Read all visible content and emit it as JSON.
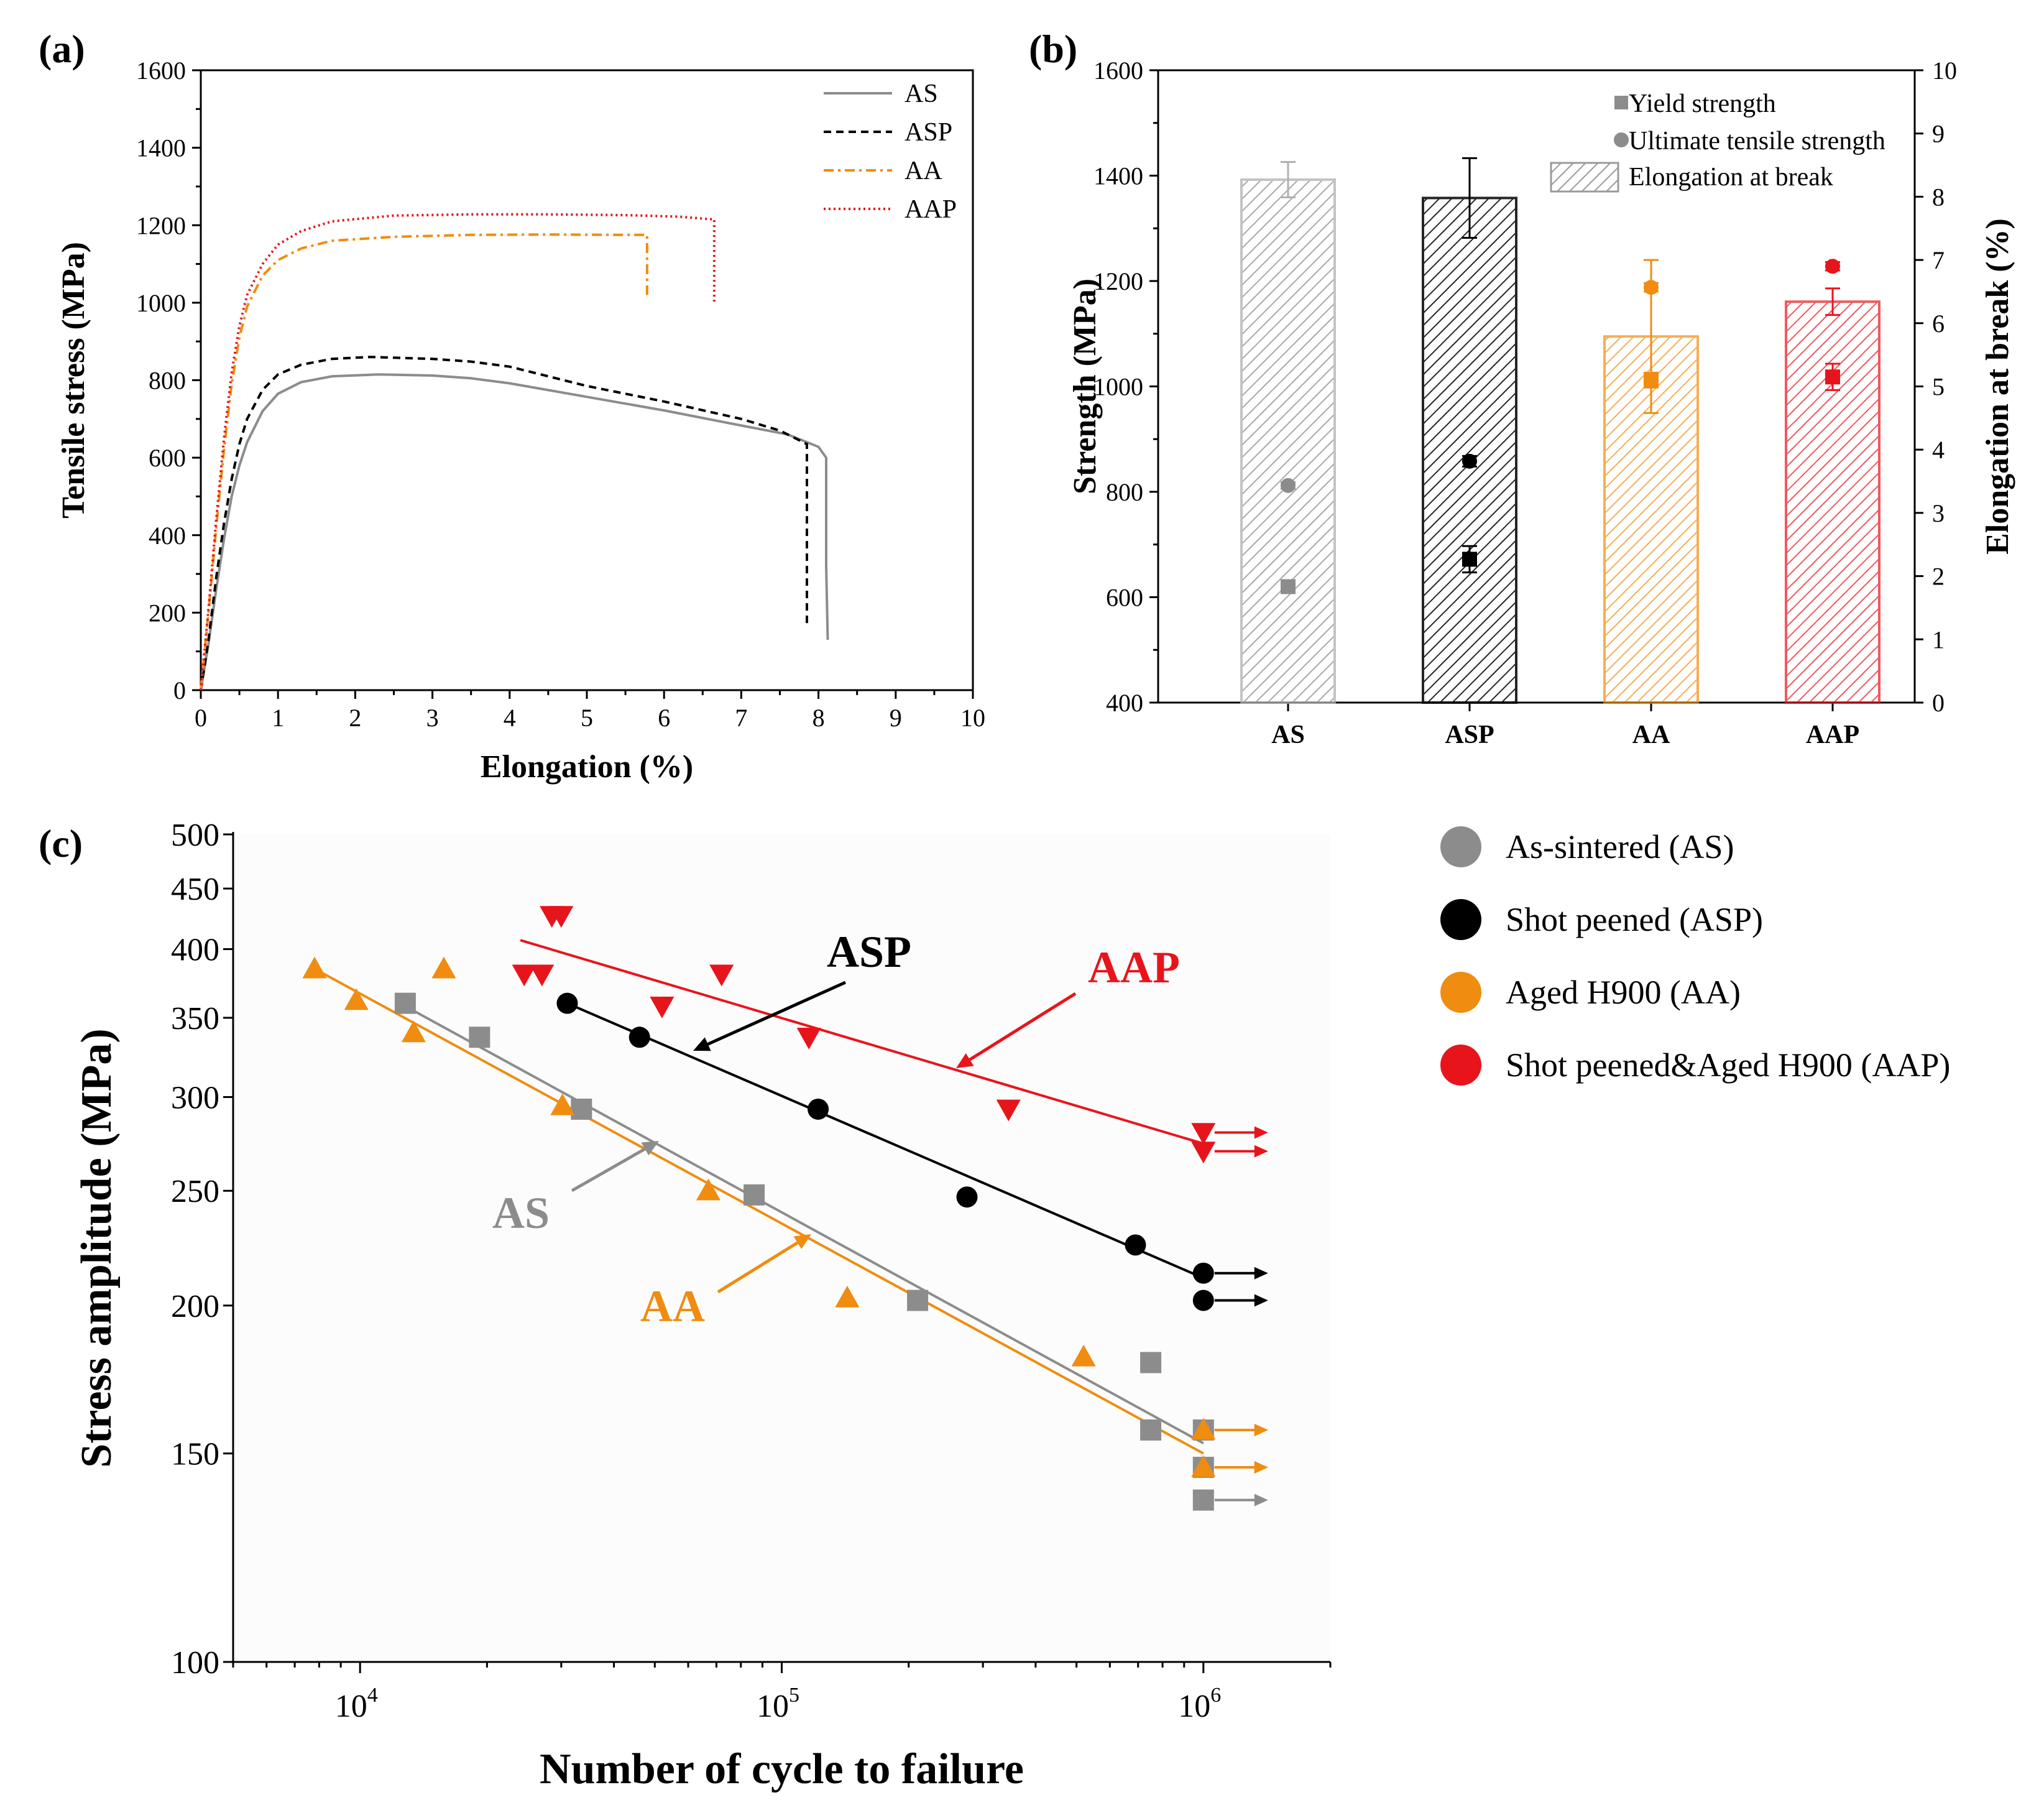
{
  "panel_labels": {
    "a": "(a)",
    "b": "(b)",
    "c": "(c)"
  },
  "chart_data": [
    {
      "panel": "(a)",
      "type": "line",
      "xlabel": "Elongation (%)",
      "ylabel": "Tensile stress (MPa)",
      "xlim": [
        0,
        10
      ],
      "ylim": [
        0,
        1600
      ],
      "xticks": [
        "0",
        "1",
        "2",
        "3",
        "4",
        "5",
        "6",
        "7",
        "8",
        "9",
        "10"
      ],
      "yticks": [
        "0",
        "200",
        "400",
        "600",
        "800",
        "1000",
        "1200",
        "1400",
        "1600"
      ],
      "legend": [
        "AS",
        "ASP",
        "AA",
        "AAP"
      ],
      "series": [
        {
          "name": "AS",
          "color": "#8c8c8c",
          "style": "solid",
          "points": [
            [
              0,
              0
            ],
            [
              0.1,
              120
            ],
            [
              0.2,
              260
            ],
            [
              0.3,
              390
            ],
            [
              0.4,
              500
            ],
            [
              0.5,
              580
            ],
            [
              0.6,
              640
            ],
            [
              0.8,
              720
            ],
            [
              1.0,
              765
            ],
            [
              1.3,
              795
            ],
            [
              1.7,
              810
            ],
            [
              2.3,
              815
            ],
            [
              3.0,
              812
            ],
            [
              3.5,
              805
            ],
            [
              4.0,
              792
            ],
            [
              5.0,
              757
            ],
            [
              6.0,
              722
            ],
            [
              7.0,
              683
            ],
            [
              7.6,
              660
            ],
            [
              8.0,
              628
            ],
            [
              8.1,
              600
            ],
            [
              8.1,
              320
            ],
            [
              8.12,
              130
            ]
          ]
        },
        {
          "name": "ASP",
          "color": "#000000",
          "style": "dashed",
          "points": [
            [
              0,
              0
            ],
            [
              0.1,
              130
            ],
            [
              0.2,
              290
            ],
            [
              0.3,
              430
            ],
            [
              0.4,
              545
            ],
            [
              0.5,
              635
            ],
            [
              0.6,
              700
            ],
            [
              0.8,
              775
            ],
            [
              1.0,
              815
            ],
            [
              1.3,
              840
            ],
            [
              1.7,
              855
            ],
            [
              2.2,
              860
            ],
            [
              3.0,
              855
            ],
            [
              3.5,
              848
            ],
            [
              4.0,
              835
            ],
            [
              5.0,
              785
            ],
            [
              6.0,
              745
            ],
            [
              7.0,
              700
            ],
            [
              7.5,
              670
            ],
            [
              7.85,
              635
            ],
            [
              7.85,
              400
            ],
            [
              7.85,
              170
            ]
          ]
        },
        {
          "name": "AA",
          "color": "#f08c10",
          "style": "dashdot",
          "points": [
            [
              0,
              0
            ],
            [
              0.1,
              200
            ],
            [
              0.2,
              420
            ],
            [
              0.3,
              620
            ],
            [
              0.4,
              790
            ],
            [
              0.5,
              910
            ],
            [
              0.6,
              990
            ],
            [
              0.8,
              1070
            ],
            [
              1.0,
              1110
            ],
            [
              1.3,
              1140
            ],
            [
              1.7,
              1160
            ],
            [
              2.5,
              1170
            ],
            [
              3.5,
              1175
            ],
            [
              4.5,
              1176
            ],
            [
              5.5,
              1175
            ],
            [
              5.78,
              1175
            ],
            [
              5.78,
              1090
            ],
            [
              5.78,
              1020
            ]
          ]
        },
        {
          "name": "AAP",
          "color": "#e8141c",
          "style": "dotted",
          "points": [
            [
              0,
              0
            ],
            [
              0.1,
              210
            ],
            [
              0.2,
              440
            ],
            [
              0.3,
              650
            ],
            [
              0.4,
              820
            ],
            [
              0.5,
              940
            ],
            [
              0.6,
              1020
            ],
            [
              0.8,
              1100
            ],
            [
              1.0,
              1150
            ],
            [
              1.3,
              1185
            ],
            [
              1.7,
              1210
            ],
            [
              2.5,
              1225
            ],
            [
              3.5,
              1228
            ],
            [
              4.5,
              1228
            ],
            [
              5.5,
              1226
            ],
            [
              6.2,
              1222
            ],
            [
              6.65,
              1215
            ],
            [
              6.65,
              1100
            ],
            [
              6.65,
              1000
            ]
          ]
        }
      ]
    },
    {
      "panel": "(b)",
      "type": "bar",
      "categories": [
        "AS",
        "ASP",
        "AA",
        "AAP"
      ],
      "colors": [
        "#8c8c8c",
        "#000000",
        "#f08c10",
        "#e8141c"
      ],
      "ylabel": "Strength (MPa)",
      "y2label": "Elongation at break (%)",
      "ylim": [
        400,
        1600
      ],
      "y2lim": [
        0,
        10
      ],
      "yticks": [
        "400",
        "600",
        "800",
        "1000",
        "1200",
        "1400",
        "1600"
      ],
      "y2ticks": [
        "0",
        "1",
        "2",
        "3",
        "4",
        "5",
        "6",
        "7",
        "8",
        "9",
        "10"
      ],
      "legend": [
        "Yield strength",
        "Ultimate tensile strength",
        "Elongation at break"
      ],
      "elongation_at_break": [
        8.27,
        7.98,
        5.79,
        6.34
      ],
      "elongation_err": [
        0.28,
        0.63,
        1.21,
        0.21
      ],
      "yield_strength": [
        620,
        672,
        1012,
        1018
      ],
      "yield_err": [
        12,
        25,
        14,
        25
      ],
      "ultimate_tensile_strength": [
        812,
        858,
        1188,
        1228
      ],
      "uts_err": [
        6,
        10,
        8,
        8
      ]
    },
    {
      "panel": "(c)",
      "type": "scatter",
      "xscale": "log",
      "yscale": "log",
      "xlabel": "Number of cycle to failure",
      "ylabel": "Stress amplitude (MPa)",
      "xlim": [
        5000,
        2000000
      ],
      "ylim": [
        100,
        500
      ],
      "xticks": [
        10000,
        100000,
        1000000
      ],
      "xtick_bases": [
        "10",
        "10",
        "10"
      ],
      "xtick_exps": [
        "4",
        "5",
        "6"
      ],
      "yticks": [
        "100",
        "150",
        "200",
        "250",
        "300",
        "350",
        "400",
        "450",
        "500"
      ],
      "legend": [
        "As-sintered (AS)",
        "Shot peened (ASP)",
        "Aged H900 (AA)",
        "Shot peened&Aged H900 (AAP)"
      ],
      "legend_colors": [
        "#8c8c8c",
        "#000000",
        "#f08c10",
        "#e8141c"
      ],
      "annotations": [
        "ASP",
        "AAP",
        "AS",
        "AA"
      ],
      "series": [
        {
          "name": "AS",
          "color": "#8c8c8c",
          "marker": "square",
          "points": [
            [
              12800,
              360
            ],
            [
              19200,
              337
            ],
            [
              33500,
              293
            ],
            [
              86000,
              248
            ],
            [
              210000,
              202
            ],
            [
              750000,
              179
            ],
            [
              750000,
              157
            ]
          ],
          "runouts": [
            [
              1000000,
              157
            ],
            [
              1000000,
              146
            ],
            [
              1000000,
              137
            ]
          ],
          "fit": [
            [
              12800,
              358
            ],
            [
              1000000,
              153
            ]
          ]
        },
        {
          "name": "ASP",
          "color": "#000000",
          "marker": "circle",
          "points": [
            [
              31000,
              360
            ],
            [
              46000,
              337
            ],
            [
              122000,
              293
            ],
            [
              275000,
              247
            ],
            [
              690000,
              225
            ]
          ],
          "runouts": [
            [
              1000000,
              213
            ],
            [
              1000000,
              202
            ]
          ],
          "fit": [
            [
              31000,
              360
            ],
            [
              1000000,
              211
            ]
          ]
        },
        {
          "name": "AA",
          "color": "#f08c10",
          "marker": "triangle-up",
          "points": [
            [
              7800,
              385
            ],
            [
              9800,
              362
            ],
            [
              13400,
              340
            ],
            [
              15800,
              385
            ],
            [
              30200,
              295
            ],
            [
              67000,
              250
            ],
            [
              143000,
              203
            ],
            [
              520000,
              181
            ]
          ],
          "runouts": [
            [
              1000000,
              157
            ],
            [
              1000000,
              146
            ]
          ],
          "fit": [
            [
              7800,
              385
            ],
            [
              1000000,
              150
            ]
          ]
        },
        {
          "name": "AAP",
          "color": "#e8141c",
          "marker": "triangle-down",
          "points": [
            [
              24500,
              381
            ],
            [
              27000,
              381
            ],
            [
              28500,
              427
            ],
            [
              30000,
              427
            ],
            [
              52000,
              358
            ],
            [
              72000,
              381
            ],
            [
              116000,
              337
            ],
            [
              345000,
              293
            ]
          ],
          "runouts": [
            [
              1000000,
              280
            ],
            [
              1000000,
              270
            ]
          ],
          "fit": [
            [
              24000,
              407
            ],
            [
              1000000,
              274
            ]
          ]
        }
      ]
    }
  ]
}
